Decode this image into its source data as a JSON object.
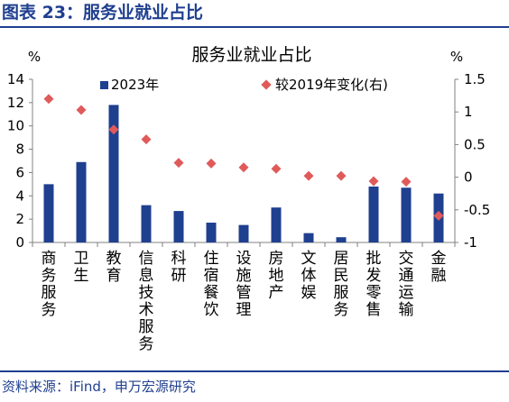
{
  "figure": {
    "label": "图表 23：服务业就业占比",
    "source": "资料来源：iFind，申万宏源研究"
  },
  "colors": {
    "bar": "#1f3f8f",
    "marker": "#e05a5a",
    "axis": "#808080",
    "title_text": "#1f3f8f"
  },
  "chart_data": {
    "type": "bar",
    "title": "服务业就业占比",
    "categories": [
      "商务服务",
      "卫生",
      "教育",
      "信息技术服务",
      "科研",
      "住宿餐饮",
      "设施管理",
      "房地产",
      "文体娱",
      "居民服务",
      "批发零售",
      "交通运输",
      "金融"
    ],
    "series": [
      {
        "name": "2023年",
        "type": "bar",
        "axis": "left",
        "values": [
          5.0,
          6.9,
          11.8,
          3.2,
          2.7,
          1.7,
          1.5,
          3.0,
          0.8,
          0.45,
          4.8,
          4.7,
          4.2
        ]
      },
      {
        "name": "较2019年变化(右)",
        "type": "scatter",
        "axis": "right",
        "values": [
          1.2,
          1.03,
          0.73,
          0.58,
          0.22,
          0.21,
          0.15,
          0.13,
          0.02,
          0.02,
          -0.06,
          -0.07,
          -0.59
        ]
      }
    ],
    "y_left": {
      "label": "%",
      "min": 0,
      "max": 14,
      "ticks": [
        0,
        2,
        4,
        6,
        8,
        10,
        12,
        14
      ]
    },
    "y_right": {
      "label": "%",
      "min": -1,
      "max": 1.5,
      "ticks": [
        -1,
        -0.5,
        0,
        0.5,
        1,
        1.5
      ],
      "tick_labels": [
        "-1",
        "-0.5",
        "0",
        "0.5",
        "1",
        "1.5"
      ]
    },
    "legend": "top",
    "grid": false
  }
}
